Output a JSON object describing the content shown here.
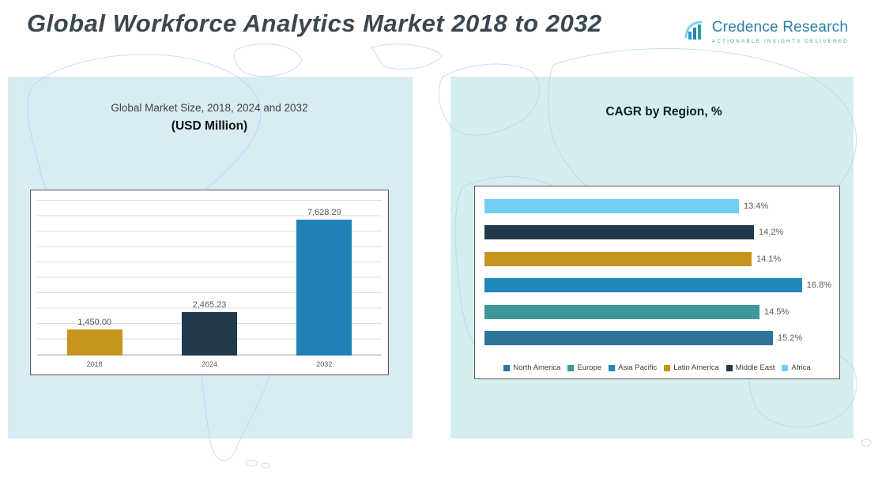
{
  "page": {
    "title": "Global Workforce Analytics Market 2018 to 2032"
  },
  "logo": {
    "brand": "Credence Research",
    "tagline": "Actionable Insights Delivered"
  },
  "left_panel": {
    "title_line1": "Global Market Size, 2018, 2024 and 2032",
    "title_line2": "(USD Million)"
  },
  "right_panel": {
    "title": "CAGR by Region, %"
  },
  "chart_data": [
    {
      "id": "market-size",
      "type": "bar",
      "title": "Global Market Size, 2018, 2024 and 2032 (USD Million)",
      "categories": [
        "2018",
        "2024",
        "2032"
      ],
      "values": [
        1450.0,
        2465.23,
        7628.29
      ],
      "value_labels": [
        "1,450.00",
        "2,465.23",
        "7,628.29"
      ],
      "colors": [
        "#c6941d",
        "#21394a",
        "#1f82b4"
      ],
      "ylim": [
        0,
        8000
      ],
      "grid": true,
      "legend": false
    },
    {
      "id": "cagr-by-region",
      "type": "bar",
      "orientation": "horizontal",
      "title": "CAGR by Region, %",
      "categories": [
        "North America",
        "Europe",
        "Asia Pacific",
        "Latin America",
        "Middle East",
        "Africa"
      ],
      "values": [
        15.2,
        14.5,
        16.8,
        14.1,
        14.2,
        13.4
      ],
      "value_labels": [
        "15.2%",
        "14.5%",
        "16.8%",
        "14.1%",
        "14.2%",
        "13.4%"
      ],
      "colors": [
        "#2f7399",
        "#3e989b",
        "#2089bc",
        "#c6941d",
        "#21394a",
        "#72cef2"
      ],
      "xlim": [
        0,
        18
      ],
      "grid": false,
      "legend_position": "bottom",
      "note": "rows plotted bottom-to-top in category order (Africa on top)"
    }
  ]
}
